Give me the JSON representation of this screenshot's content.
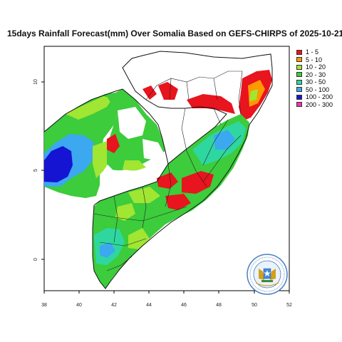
{
  "title": "15days Rainfall Forecast(mm) Over Somalia Based on  GEFS-CHIRPS of 2025-10-21",
  "map": {
    "lon_range": [
      38,
      52
    ],
    "lat_range": [
      -1.8,
      12.2
    ],
    "x_ticks": [
      "38",
      "40",
      "42",
      "44",
      "46",
      "48",
      "50",
      "52"
    ],
    "y_ticks": [
      {
        "value": 10,
        "label": "10"
      },
      {
        "value": 5,
        "label": "5"
      },
      {
        "value": 0,
        "label": "0"
      }
    ]
  },
  "legend": [
    {
      "label": "1 - 5",
      "color": "#e8141e"
    },
    {
      "label": "5 - 10",
      "color": "#ff9900"
    },
    {
      "label": "10 - 20",
      "color": "#a0e632"
    },
    {
      "label": "20 - 30",
      "color": "#3ccc3c"
    },
    {
      "label": "30 - 50",
      "color": "#2fd7a0"
    },
    {
      "label": "50 - 100",
      "color": "#3ca8f0"
    },
    {
      "label": "100 - 200",
      "color": "#1414d2"
    },
    {
      "label": "200 - 300",
      "color": "#f032b4"
    }
  ],
  "logo_icon": "somalia-emblem-icon"
}
